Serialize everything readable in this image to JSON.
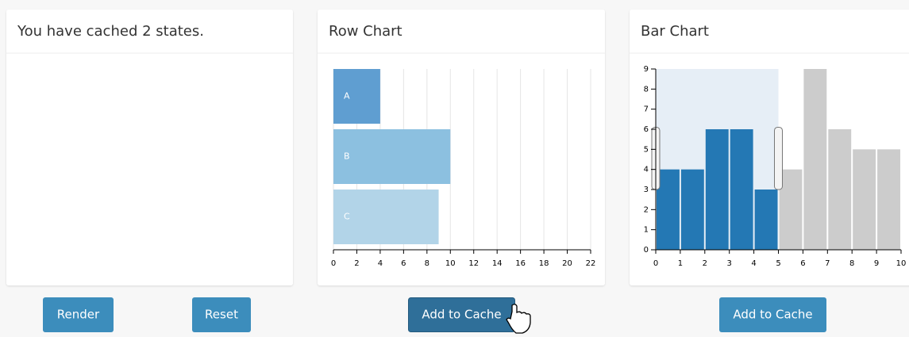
{
  "panels": [
    {
      "title": "You have cached 2 states.",
      "buttons": [
        "Render",
        "Reset"
      ]
    },
    {
      "title": "Row Chart",
      "button": "Add to Cache"
    },
    {
      "title": "Bar Chart",
      "button": "Add to Cache"
    }
  ],
  "chart_data": [
    {
      "type": "row",
      "categories": [
        "A",
        "B",
        "C"
      ],
      "values": [
        4,
        10,
        9
      ],
      "colors": [
        "#5f9ed1",
        "#8cc0e0",
        "#b2d4e8"
      ],
      "xlim": [
        0,
        22
      ],
      "xticks": [
        0,
        2,
        4,
        6,
        8,
        10,
        12,
        14,
        16,
        18,
        20,
        22
      ],
      "grid": true
    },
    {
      "type": "histogram",
      "bins": [
        0,
        1,
        2,
        3,
        4,
        5,
        6,
        7,
        8,
        9,
        10
      ],
      "values": [
        4,
        4,
        6,
        6,
        3,
        4,
        9,
        6,
        5,
        5
      ],
      "color": "#2478b4",
      "unselected_color": "#cccccc",
      "brush": [
        0,
        5
      ],
      "xlim": [
        0,
        10
      ],
      "xticks": [
        0,
        1,
        2,
        3,
        4,
        5,
        6,
        7,
        8,
        9,
        10
      ],
      "ylim": [
        0,
        9
      ],
      "yticks": [
        0,
        1,
        2,
        3,
        4,
        5,
        6,
        7,
        8,
        9
      ]
    }
  ]
}
